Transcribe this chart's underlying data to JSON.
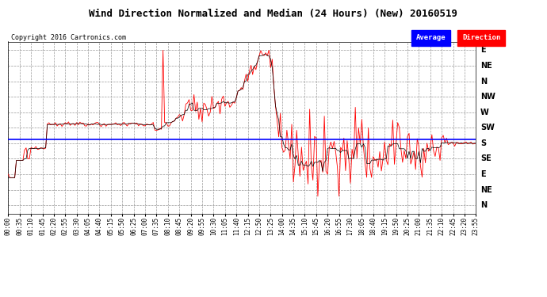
{
  "title": "Wind Direction Normalized and Median (24 Hours) (New) 20160519",
  "copyright": "Copyright 2016 Cartronics.com",
  "bg_color": "#ffffff",
  "plot_bg_color": "#ffffff",
  "grid_color": "#999999",
  "y_labels": [
    "E",
    "NE",
    "N",
    "NW",
    "W",
    "SW",
    "S",
    "SE",
    "E",
    "NE",
    "N"
  ],
  "y_ticks": [
    0,
    45,
    90,
    135,
    180,
    225,
    270,
    315,
    360,
    405,
    450
  ],
  "y_lim": [
    -25,
    475
  ],
  "avg_line_value": 258,
  "avg_line_color": "#0000ff",
  "data_line_color": "#ff0000",
  "black_line_color": "#000000",
  "legend_avg_bg": "#0000ff",
  "legend_dir_bg": "#ff0000"
}
